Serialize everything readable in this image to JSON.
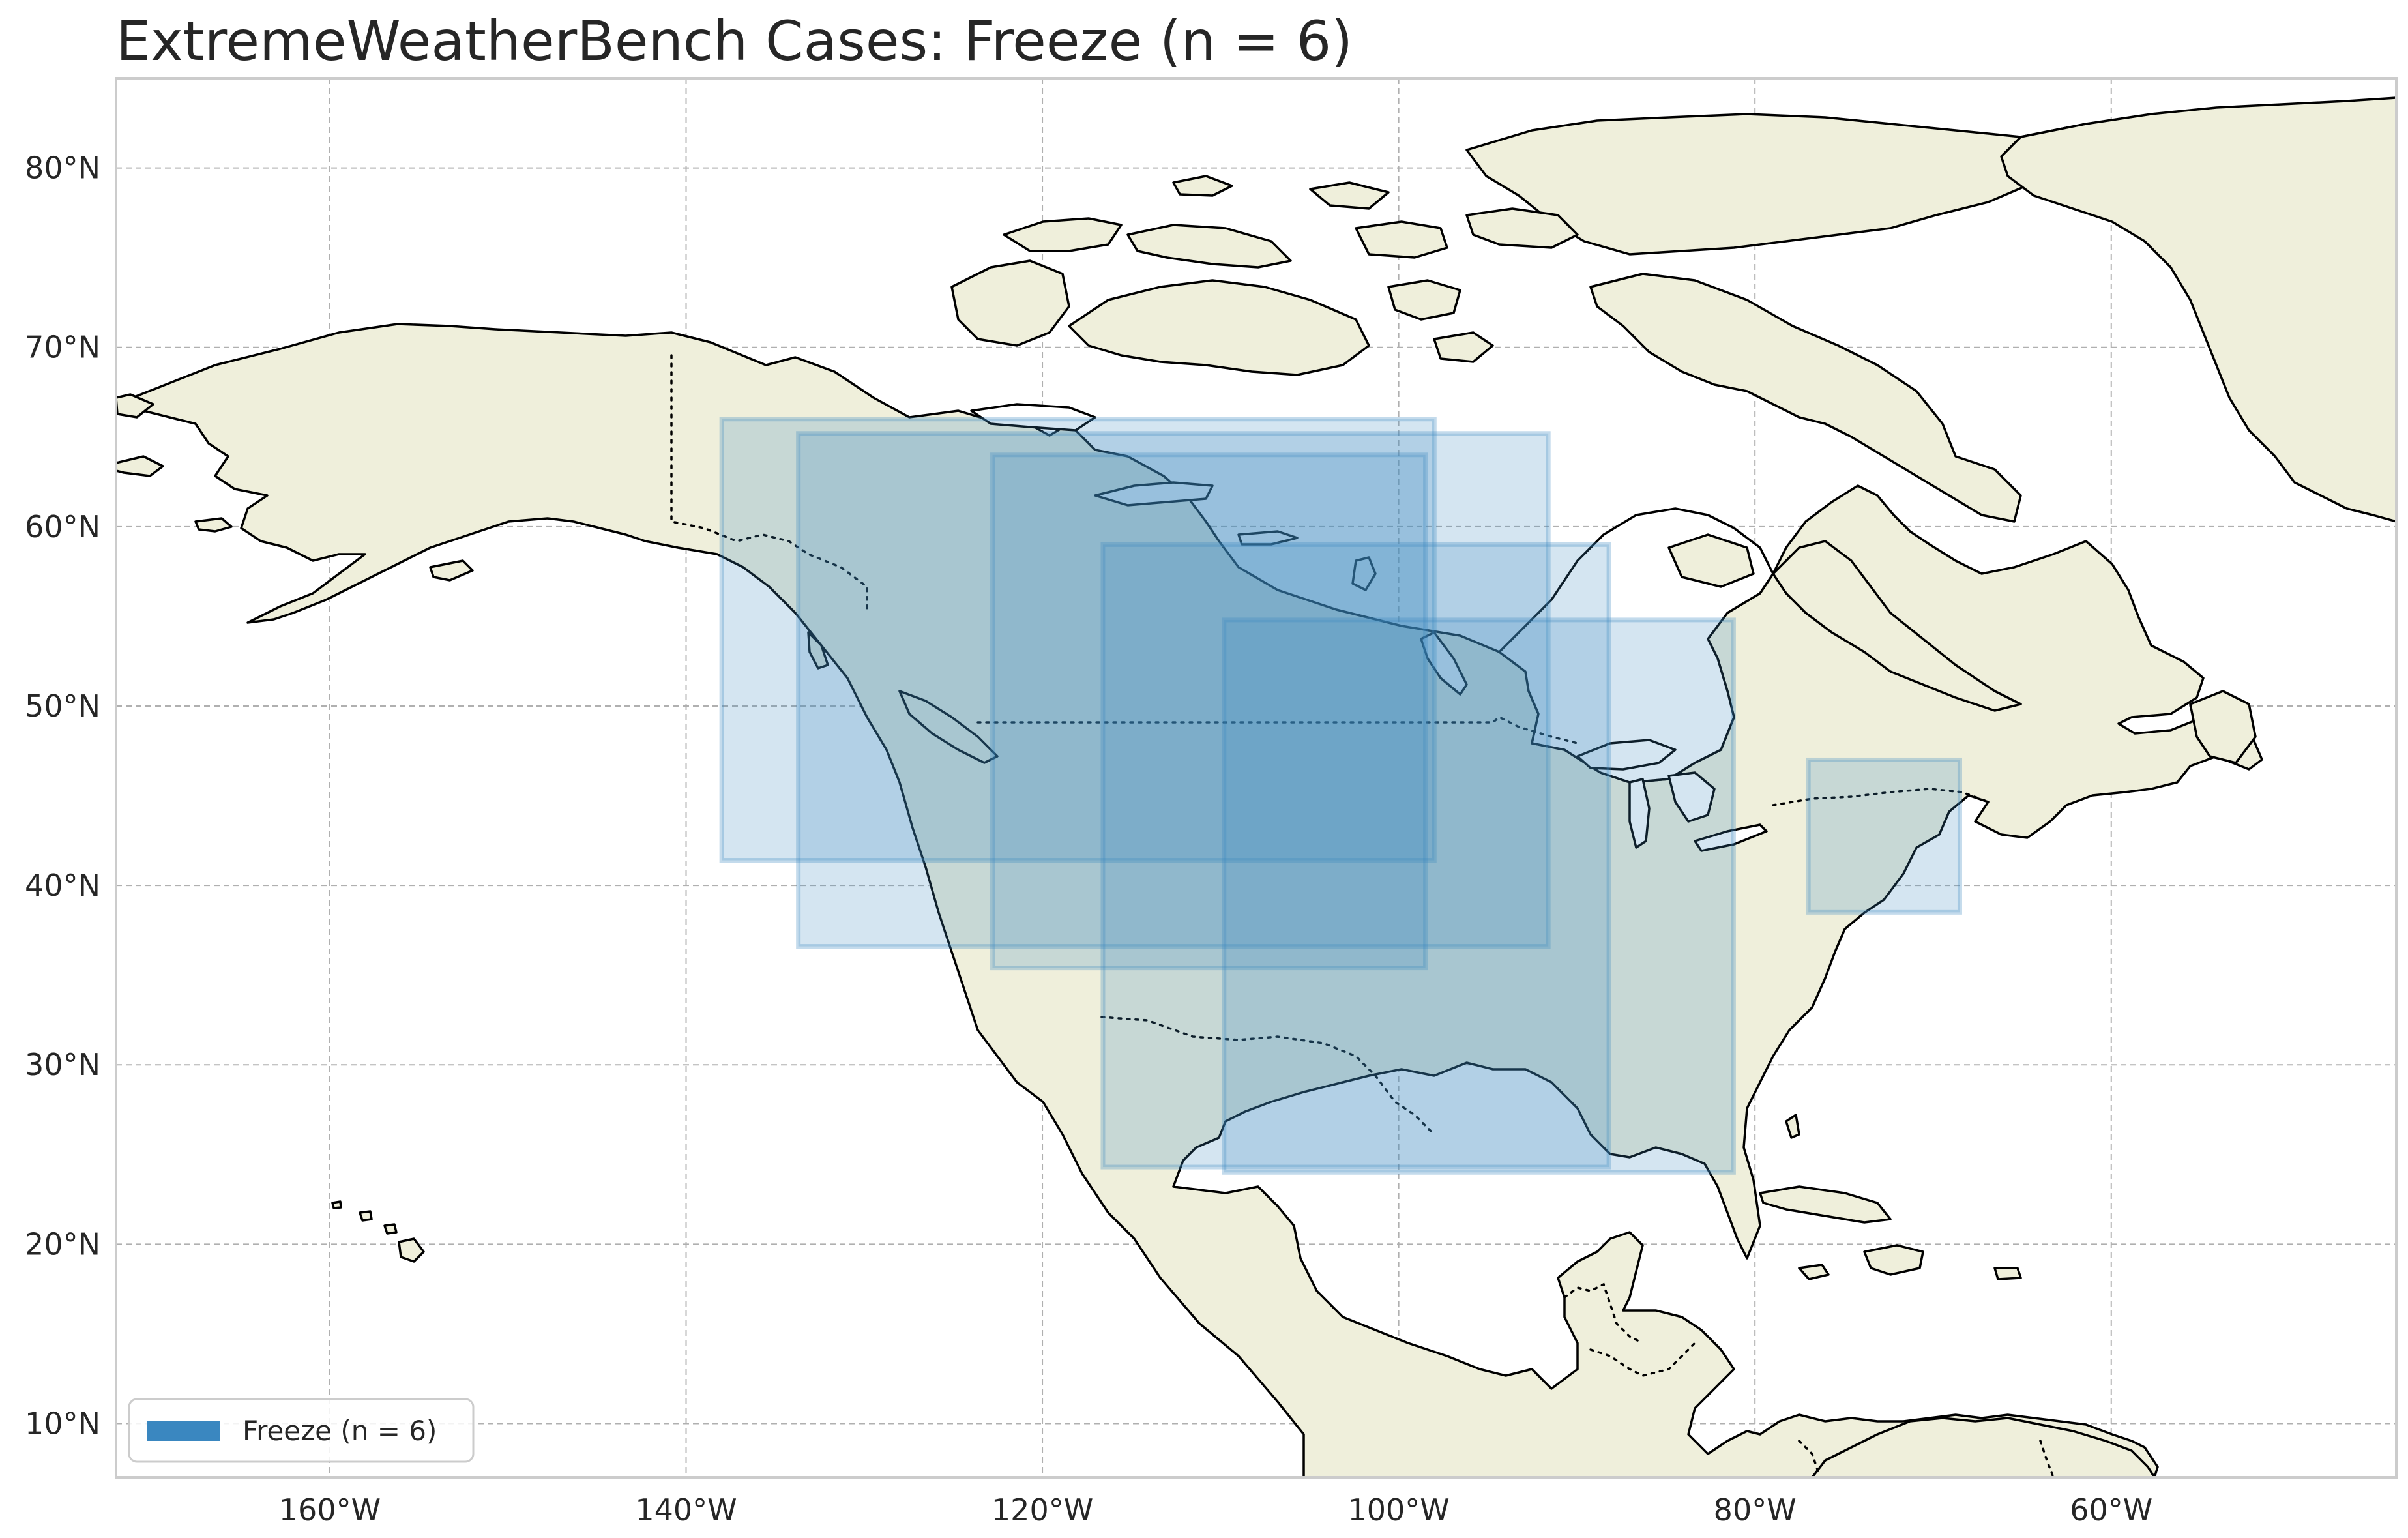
{
  "title": "ExtremeWeatherBench Cases: Freeze (n = 6)",
  "map": {
    "projection": "PlateCarree",
    "lon_range": [
      -172,
      -44
    ],
    "lat_range": [
      7,
      85
    ],
    "gridlines": true,
    "coastlines": true,
    "borders": true,
    "land_color": "#efefdb",
    "ocean_color": "#ffffff",
    "x_ticks": [
      {
        "lon": -160,
        "label": "160°W"
      },
      {
        "lon": -140,
        "label": "140°W"
      },
      {
        "lon": -120,
        "label": "120°W"
      },
      {
        "lon": -100,
        "label": "100°W"
      },
      {
        "lon": -80,
        "label": "80°W"
      },
      {
        "lon": -60,
        "label": "60°W"
      }
    ],
    "y_ticks": [
      {
        "lat": 80,
        "label": "80°N"
      },
      {
        "lat": 70,
        "label": "70°N"
      },
      {
        "lat": 60,
        "label": "60°N"
      },
      {
        "lat": 50,
        "label": "50°N"
      },
      {
        "lat": 40,
        "label": "40°N"
      },
      {
        "lat": 30,
        "label": "30°N"
      },
      {
        "lat": 20,
        "label": "20°N"
      },
      {
        "lat": 10,
        "label": "10°N"
      }
    ]
  },
  "cases": [
    {
      "lon_min": -138,
      "lon_max": -98,
      "lat_min": 41.4,
      "lat_max": 66
    },
    {
      "lon_min": -133.7,
      "lon_max": -91.6,
      "lat_min": 36.6,
      "lat_max": 65.2
    },
    {
      "lon_min": -122.8,
      "lon_max": -98.5,
      "lat_min": 35.4,
      "lat_max": 64
    },
    {
      "lon_min": -116.6,
      "lon_max": -88.2,
      "lat_min": 24.3,
      "lat_max": 59
    },
    {
      "lon_min": -109.8,
      "lon_max": -81.2,
      "lat_min": 24,
      "lat_max": 54.8
    },
    {
      "lon_min": -77,
      "lon_max": -68.5,
      "lat_min": 38.5,
      "lat_max": 47
    }
  ],
  "case_style": {
    "fill": "#3a87c0",
    "fill_opacity": 0.22,
    "stroke": "#3a87c0",
    "stroke_opacity": 0.3
  },
  "legend": {
    "label": "Freeze (n = 6)",
    "color": "#3a87c0",
    "location": "lower-left"
  }
}
